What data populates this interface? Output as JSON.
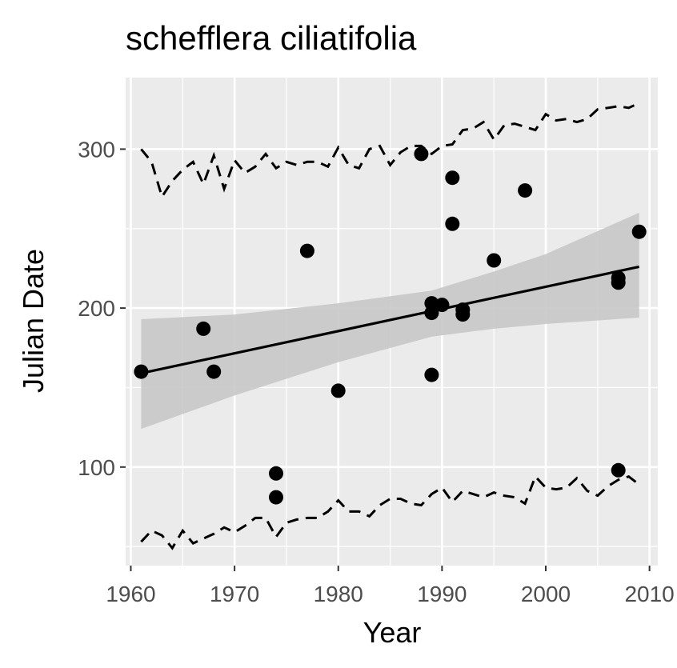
{
  "chart_data": {
    "type": "scatter",
    "title": "schefflera ciliatifolia",
    "xlabel": "Year",
    "ylabel": "Julian Date",
    "xlim": [
      1959.5,
      2010.8
    ],
    "ylim": [
      38,
      345
    ],
    "x_ticks": [
      1960,
      1970,
      1980,
      1990,
      2000,
      2010
    ],
    "y_ticks": [
      100,
      200,
      300
    ],
    "grid": true,
    "legend": "none",
    "colors": {
      "panel": "#ebebeb",
      "grid": "#ffffff",
      "points": "#000000",
      "ribbon": "#c8c8c8",
      "tick_label": "#4d4d4d"
    },
    "points": [
      {
        "x": 1961,
        "y": 160
      },
      {
        "x": 1967,
        "y": 187
      },
      {
        "x": 1968,
        "y": 160
      },
      {
        "x": 1974,
        "y": 96
      },
      {
        "x": 1974,
        "y": 81
      },
      {
        "x": 1977,
        "y": 236
      },
      {
        "x": 1980,
        "y": 148
      },
      {
        "x": 1988,
        "y": 297
      },
      {
        "x": 1989,
        "y": 203
      },
      {
        "x": 1989,
        "y": 197
      },
      {
        "x": 1989,
        "y": 158
      },
      {
        "x": 1990,
        "y": 202
      },
      {
        "x": 1991,
        "y": 282
      },
      {
        "x": 1991,
        "y": 253
      },
      {
        "x": 1992,
        "y": 199
      },
      {
        "x": 1992,
        "y": 196
      },
      {
        "x": 1995,
        "y": 230
      },
      {
        "x": 1998,
        "y": 274
      },
      {
        "x": 2007,
        "y": 219
      },
      {
        "x": 2007,
        "y": 216
      },
      {
        "x": 2007,
        "y": 98
      },
      {
        "x": 2009,
        "y": 248
      }
    ],
    "trend_line": {
      "x": [
        1961,
        2009
      ],
      "y": [
        159,
        226
      ]
    },
    "confidence_band": {
      "x": [
        1961,
        1970,
        1980,
        1989,
        1995,
        2000,
        2009
      ],
      "lower": [
        124,
        145,
        166,
        182,
        187,
        190,
        194
      ],
      "upper": [
        193,
        196,
        203,
        211,
        223,
        234,
        260
      ]
    },
    "upper_dashed": {
      "x": [
        1961,
        1962,
        1963,
        1964,
        1965,
        1966,
        1967,
        1968,
        1969,
        1970,
        1971,
        1972,
        1973,
        1974,
        1975,
        1976,
        1977,
        1978,
        1979,
        1980,
        1981,
        1982,
        1983,
        1984,
        1985,
        1986,
        1987,
        1988,
        1989,
        1990,
        1991,
        1992,
        1993,
        1994,
        1995,
        1996,
        1997,
        1998,
        1999,
        2000,
        2001,
        2002,
        2003,
        2004,
        2005,
        2006,
        2007,
        2008,
        2009
      ],
      "y": [
        300,
        292,
        270,
        280,
        287,
        292,
        278,
        296,
        275,
        293,
        285,
        289,
        297,
        288,
        292,
        290,
        292,
        292,
        289,
        301,
        290,
        288,
        300,
        302,
        290,
        298,
        302,
        302,
        297,
        302,
        303,
        312,
        313,
        317,
        306,
        315,
        316,
        314,
        312,
        322,
        318,
        319,
        317,
        319,
        325,
        326,
        327,
        326,
        329
      ]
    },
    "lower_dashed": {
      "x": [
        1961,
        1962,
        1963,
        1964,
        1965,
        1966,
        1967,
        1968,
        1969,
        1970,
        1971,
        1972,
        1973,
        1974,
        1975,
        1976,
        1977,
        1978,
        1979,
        1980,
        1981,
        1982,
        1983,
        1984,
        1985,
        1986,
        1987,
        1988,
        1989,
        1990,
        1991,
        1992,
        1993,
        1994,
        1995,
        1996,
        1997,
        1998,
        1999,
        2000,
        2001,
        2002,
        2003,
        2004,
        2005,
        2006,
        2007,
        2008,
        2009
      ],
      "y": [
        53,
        60,
        57,
        49,
        60,
        52,
        55,
        58,
        62,
        59,
        63,
        68,
        68,
        56,
        65,
        67,
        68,
        68,
        72,
        79,
        72,
        72,
        69,
        76,
        80,
        80,
        77,
        76,
        83,
        87,
        78,
        85,
        83,
        81,
        84,
        82,
        81,
        77,
        94,
        87,
        86,
        87,
        93,
        85,
        82,
        88,
        92,
        94,
        89
      ]
    }
  }
}
